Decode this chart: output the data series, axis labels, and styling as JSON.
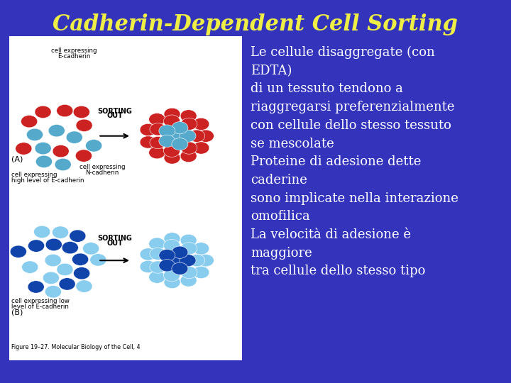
{
  "title": "Cadherin-Dependent Cell Sorting",
  "title_color": "#EEEE44",
  "title_fontsize": 22,
  "background_color": "#3333BB",
  "body_text_color": "#FFFFFF",
  "body_text": "Le cellule disaggregate (con\nEDTA)\ndi un tessuto tendono a\nriaggregarsi preferenzialmente\ncon cellule dello stesso tessuto\nse mescolate\nProteine di adesione dette\ncaderine\nsono implicate nella interazione\nomofilica\nLa velocità di adesione è\nmaggiore\ntra cellule dello stesso tipo",
  "body_fontsize": 13.0,
  "image_placeholder_color": "#FFFFFF",
  "caption": "Figure 19–27. Molecular Biology of the Cell, 4",
  "red_color": "#CC2222",
  "blue_color": "#55AACC",
  "dark_blue": "#1144AA",
  "light_blue": "#88CCEE",
  "mid_blue": "#3377BB"
}
